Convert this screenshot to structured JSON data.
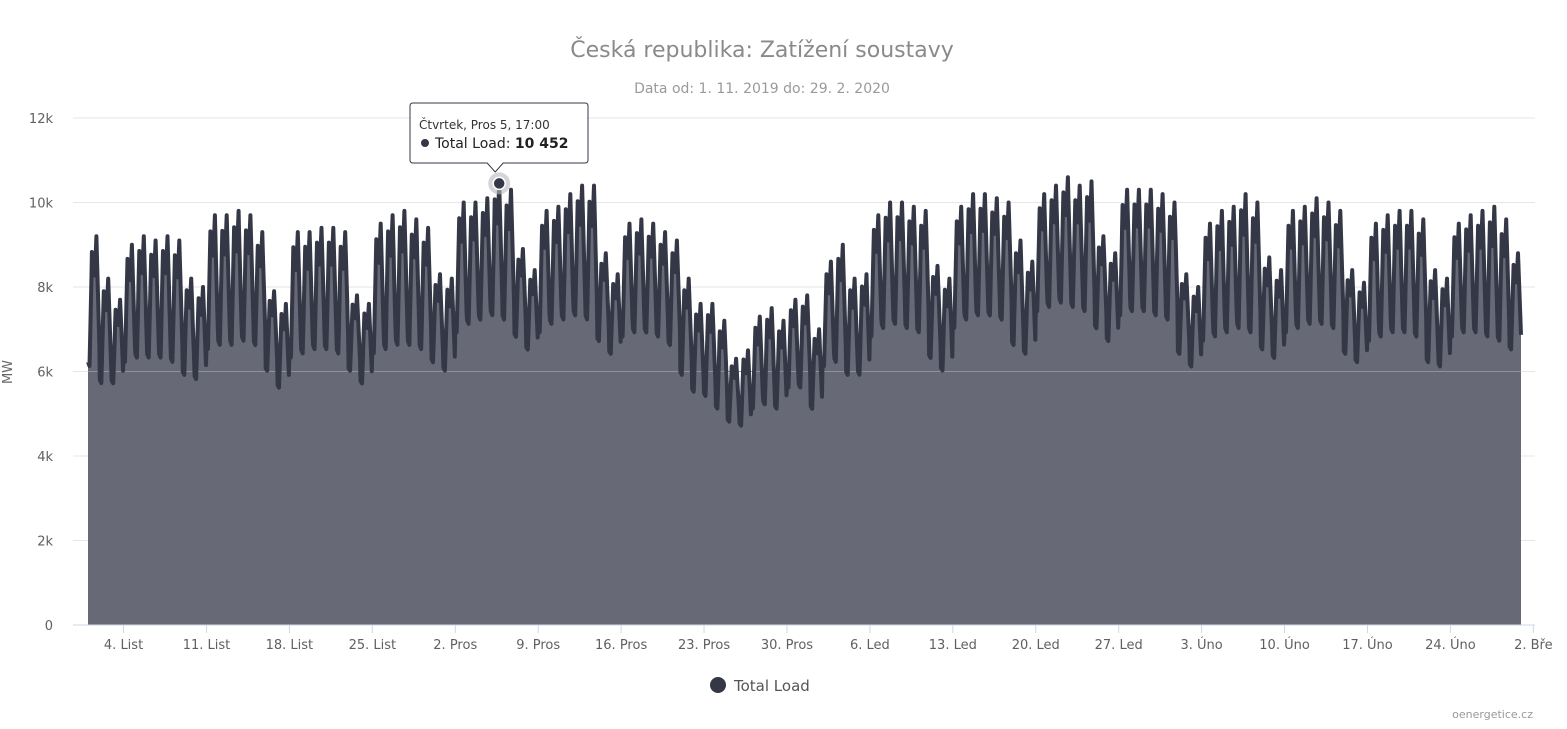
{
  "chart_data": {
    "type": "area",
    "title": "Česká republika: Zatížení soustavy",
    "subtitle": "Data od: 1. 11. 2019 do: 29. 2. 2020",
    "ylabel": "MW",
    "ylim": [
      0,
      12000
    ],
    "y_ticks": [
      "0",
      "2k",
      "4k",
      "6k",
      "8k",
      "10k",
      "12k"
    ],
    "x_start": "2019-11-01",
    "x_end": "2020-02-29",
    "x_tick_labels": [
      {
        "date": "2019-11-04",
        "label": "4. List"
      },
      {
        "date": "2019-11-11",
        "label": "11. List"
      },
      {
        "date": "2019-11-18",
        "label": "18. List"
      },
      {
        "date": "2019-11-25",
        "label": "25. List"
      },
      {
        "date": "2019-12-02",
        "label": "2. Pros"
      },
      {
        "date": "2019-12-09",
        "label": "9. Pros"
      },
      {
        "date": "2019-12-16",
        "label": "16. Pros"
      },
      {
        "date": "2019-12-23",
        "label": "23. Pros"
      },
      {
        "date": "2019-12-30",
        "label": "30. Pros"
      },
      {
        "date": "2020-01-06",
        "label": "6. Led"
      },
      {
        "date": "2020-01-13",
        "label": "13. Led"
      },
      {
        "date": "2020-01-20",
        "label": "20. Led"
      },
      {
        "date": "2020-01-27",
        "label": "27. Led"
      },
      {
        "date": "2020-02-03",
        "label": "3. Úno"
      },
      {
        "date": "2020-02-10",
        "label": "10. Úno"
      },
      {
        "date": "2020-02-17",
        "label": "17. Úno"
      },
      {
        "date": "2020-02-24",
        "label": "24. Úno"
      },
      {
        "date": "2020-03-02",
        "label": "2. Bře"
      }
    ],
    "grid": true,
    "legend_position": "bottom-center",
    "series": [
      {
        "name": "Total Load",
        "color": "#343746",
        "fill_color": "#676976",
        "daily_min_max": [
          {
            "date": "2019-11-01",
            "min": 6100,
            "max": 9200
          },
          {
            "date": "2019-11-02",
            "min": 5700,
            "max": 8200
          },
          {
            "date": "2019-11-03",
            "min": 5700,
            "max": 7700
          },
          {
            "date": "2019-11-04",
            "min": 6200,
            "max": 9000
          },
          {
            "date": "2019-11-05",
            "min": 6300,
            "max": 9200
          },
          {
            "date": "2019-11-06",
            "min": 6300,
            "max": 9100
          },
          {
            "date": "2019-11-07",
            "min": 6300,
            "max": 9200
          },
          {
            "date": "2019-11-08",
            "min": 6200,
            "max": 9100
          },
          {
            "date": "2019-11-09",
            "min": 5900,
            "max": 8200
          },
          {
            "date": "2019-11-10",
            "min": 5800,
            "max": 8000
          },
          {
            "date": "2019-11-11",
            "min": 6500,
            "max": 9700
          },
          {
            "date": "2019-11-12",
            "min": 6600,
            "max": 9700
          },
          {
            "date": "2019-11-13",
            "min": 6600,
            "max": 9800
          },
          {
            "date": "2019-11-14",
            "min": 6700,
            "max": 9700
          },
          {
            "date": "2019-11-15",
            "min": 6600,
            "max": 9300
          },
          {
            "date": "2019-11-16",
            "min": 6000,
            "max": 7900
          },
          {
            "date": "2019-11-17",
            "min": 5600,
            "max": 7600
          },
          {
            "date": "2019-11-18",
            "min": 6300,
            "max": 9300
          },
          {
            "date": "2019-11-19",
            "min": 6400,
            "max": 9300
          },
          {
            "date": "2019-11-20",
            "min": 6500,
            "max": 9400
          },
          {
            "date": "2019-11-21",
            "min": 6500,
            "max": 9400
          },
          {
            "date": "2019-11-22",
            "min": 6400,
            "max": 9300
          },
          {
            "date": "2019-11-23",
            "min": 6000,
            "max": 7800
          },
          {
            "date": "2019-11-24",
            "min": 5700,
            "max": 7600
          },
          {
            "date": "2019-11-25",
            "min": 6400,
            "max": 9500
          },
          {
            "date": "2019-11-26",
            "min": 6500,
            "max": 9700
          },
          {
            "date": "2019-11-27",
            "min": 6600,
            "max": 9800
          },
          {
            "date": "2019-11-28",
            "min": 6600,
            "max": 9600
          },
          {
            "date": "2019-11-29",
            "min": 6500,
            "max": 9400
          },
          {
            "date": "2019-11-30",
            "min": 6200,
            "max": 8300
          },
          {
            "date": "2019-12-01",
            "min": 6000,
            "max": 8200
          },
          {
            "date": "2019-12-02",
            "min": 6900,
            "max": 10000
          },
          {
            "date": "2019-12-03",
            "min": 7100,
            "max": 10000
          },
          {
            "date": "2019-12-04",
            "min": 7200,
            "max": 10100
          },
          {
            "date": "2019-12-05",
            "min": 7300,
            "max": 10452
          },
          {
            "date": "2019-12-06",
            "min": 7200,
            "max": 10300
          },
          {
            "date": "2019-12-07",
            "min": 6800,
            "max": 8900
          },
          {
            "date": "2019-12-08",
            "min": 6500,
            "max": 8400
          },
          {
            "date": "2019-12-09",
            "min": 6900,
            "max": 9800
          },
          {
            "date": "2019-12-10",
            "min": 7100,
            "max": 9900
          },
          {
            "date": "2019-12-11",
            "min": 7200,
            "max": 10200
          },
          {
            "date": "2019-12-12",
            "min": 7300,
            "max": 10400
          },
          {
            "date": "2019-12-13",
            "min": 7200,
            "max": 10400
          },
          {
            "date": "2019-12-14",
            "min": 6700,
            "max": 8800
          },
          {
            "date": "2019-12-15",
            "min": 6400,
            "max": 8300
          },
          {
            "date": "2019-12-16",
            "min": 6800,
            "max": 9500
          },
          {
            "date": "2019-12-17",
            "min": 6900,
            "max": 9600
          },
          {
            "date": "2019-12-18",
            "min": 6900,
            "max": 9500
          },
          {
            "date": "2019-12-19",
            "min": 6800,
            "max": 9300
          },
          {
            "date": "2019-12-20",
            "min": 6600,
            "max": 9100
          },
          {
            "date": "2019-12-21",
            "min": 5900,
            "max": 8200
          },
          {
            "date": "2019-12-22",
            "min": 5500,
            "max": 7600
          },
          {
            "date": "2019-12-23",
            "min": 5400,
            "max": 7600
          },
          {
            "date": "2019-12-24",
            "min": 5100,
            "max": 7200
          },
          {
            "date": "2019-12-25",
            "min": 4800,
            "max": 6300
          },
          {
            "date": "2019-12-26",
            "min": 4700,
            "max": 6500
          },
          {
            "date": "2019-12-27",
            "min": 5100,
            "max": 7300
          },
          {
            "date": "2019-12-28",
            "min": 5200,
            "max": 7500
          },
          {
            "date": "2019-12-29",
            "min": 5100,
            "max": 7200
          },
          {
            "date": "2019-12-30",
            "min": 5600,
            "max": 7700
          },
          {
            "date": "2019-12-31",
            "min": 5600,
            "max": 7800
          },
          {
            "date": "2020-01-01",
            "min": 5100,
            "max": 7000
          },
          {
            "date": "2020-01-02",
            "min": 6100,
            "max": 8600
          },
          {
            "date": "2020-01-03",
            "min": 6200,
            "max": 9000
          },
          {
            "date": "2020-01-04",
            "min": 5900,
            "max": 8200
          },
          {
            "date": "2020-01-05",
            "min": 5900,
            "max": 8300
          },
          {
            "date": "2020-01-06",
            "min": 6800,
            "max": 9700
          },
          {
            "date": "2020-01-07",
            "min": 7000,
            "max": 10000
          },
          {
            "date": "2020-01-08",
            "min": 7100,
            "max": 10000
          },
          {
            "date": "2020-01-09",
            "min": 7000,
            "max": 9900
          },
          {
            "date": "2020-01-10",
            "min": 6900,
            "max": 9800
          },
          {
            "date": "2020-01-11",
            "min": 6300,
            "max": 8500
          },
          {
            "date": "2020-01-12",
            "min": 6000,
            "max": 8200
          },
          {
            "date": "2020-01-13",
            "min": 7000,
            "max": 9900
          },
          {
            "date": "2020-01-14",
            "min": 7200,
            "max": 10200
          },
          {
            "date": "2020-01-15",
            "min": 7300,
            "max": 10200
          },
          {
            "date": "2020-01-16",
            "min": 7300,
            "max": 10100
          },
          {
            "date": "2020-01-17",
            "min": 7200,
            "max": 10000
          },
          {
            "date": "2020-01-18",
            "min": 6600,
            "max": 9100
          },
          {
            "date": "2020-01-19",
            "min": 6400,
            "max": 8600
          },
          {
            "date": "2020-01-20",
            "min": 7400,
            "max": 10200
          },
          {
            "date": "2020-01-21",
            "min": 7500,
            "max": 10400
          },
          {
            "date": "2020-01-22",
            "min": 7600,
            "max": 10600
          },
          {
            "date": "2020-01-23",
            "min": 7500,
            "max": 10400
          },
          {
            "date": "2020-01-24",
            "min": 7400,
            "max": 10500
          },
          {
            "date": "2020-01-25",
            "min": 7000,
            "max": 9200
          },
          {
            "date": "2020-01-26",
            "min": 6700,
            "max": 8800
          },
          {
            "date": "2020-01-27",
            "min": 7300,
            "max": 10300
          },
          {
            "date": "2020-01-28",
            "min": 7400,
            "max": 10300
          },
          {
            "date": "2020-01-29",
            "min": 7400,
            "max": 10300
          },
          {
            "date": "2020-01-30",
            "min": 7300,
            "max": 10200
          },
          {
            "date": "2020-01-31",
            "min": 7200,
            "max": 10000
          },
          {
            "date": "2020-02-01",
            "min": 6400,
            "max": 8300
          },
          {
            "date": "2020-02-02",
            "min": 6100,
            "max": 8000
          },
          {
            "date": "2020-02-03",
            "min": 6700,
            "max": 9500
          },
          {
            "date": "2020-02-04",
            "min": 6800,
            "max": 9800
          },
          {
            "date": "2020-02-05",
            "min": 6900,
            "max": 9900
          },
          {
            "date": "2020-02-06",
            "min": 7000,
            "max": 10200
          },
          {
            "date": "2020-02-07",
            "min": 6900,
            "max": 10000
          },
          {
            "date": "2020-02-08",
            "min": 6500,
            "max": 8700
          },
          {
            "date": "2020-02-09",
            "min": 6300,
            "max": 8400
          },
          {
            "date": "2020-02-10",
            "min": 6900,
            "max": 9800
          },
          {
            "date": "2020-02-11",
            "min": 7000,
            "max": 9900
          },
          {
            "date": "2020-02-12",
            "min": 7100,
            "max": 10100
          },
          {
            "date": "2020-02-13",
            "min": 7100,
            "max": 10000
          },
          {
            "date": "2020-02-14",
            "min": 7000,
            "max": 9800
          },
          {
            "date": "2020-02-15",
            "min": 6400,
            "max": 8400
          },
          {
            "date": "2020-02-16",
            "min": 6200,
            "max": 8100
          },
          {
            "date": "2020-02-17",
            "min": 6700,
            "max": 9500
          },
          {
            "date": "2020-02-18",
            "min": 6800,
            "max": 9700
          },
          {
            "date": "2020-02-19",
            "min": 6900,
            "max": 9800
          },
          {
            "date": "2020-02-20",
            "min": 6900,
            "max": 9800
          },
          {
            "date": "2020-02-21",
            "min": 6800,
            "max": 9600
          },
          {
            "date": "2020-02-22",
            "min": 6200,
            "max": 8400
          },
          {
            "date": "2020-02-23",
            "min": 6100,
            "max": 8200
          },
          {
            "date": "2020-02-24",
            "min": 6800,
            "max": 9500
          },
          {
            "date": "2020-02-25",
            "min": 6900,
            "max": 9700
          },
          {
            "date": "2020-02-26",
            "min": 6900,
            "max": 9800
          },
          {
            "date": "2020-02-27",
            "min": 6800,
            "max": 9900
          },
          {
            "date": "2020-02-28",
            "min": 6700,
            "max": 9600
          },
          {
            "date": "2020-02-29",
            "min": 6500,
            "max": 8800
          }
        ]
      }
    ],
    "tooltip": {
      "header": "Čtvrtek, Pros 5, 17:00",
      "series_label": "Total Load",
      "value_text": "10 452",
      "x": "2019-12-05T17:00",
      "y": 10452
    }
  },
  "credit": "oenergetice.cz"
}
